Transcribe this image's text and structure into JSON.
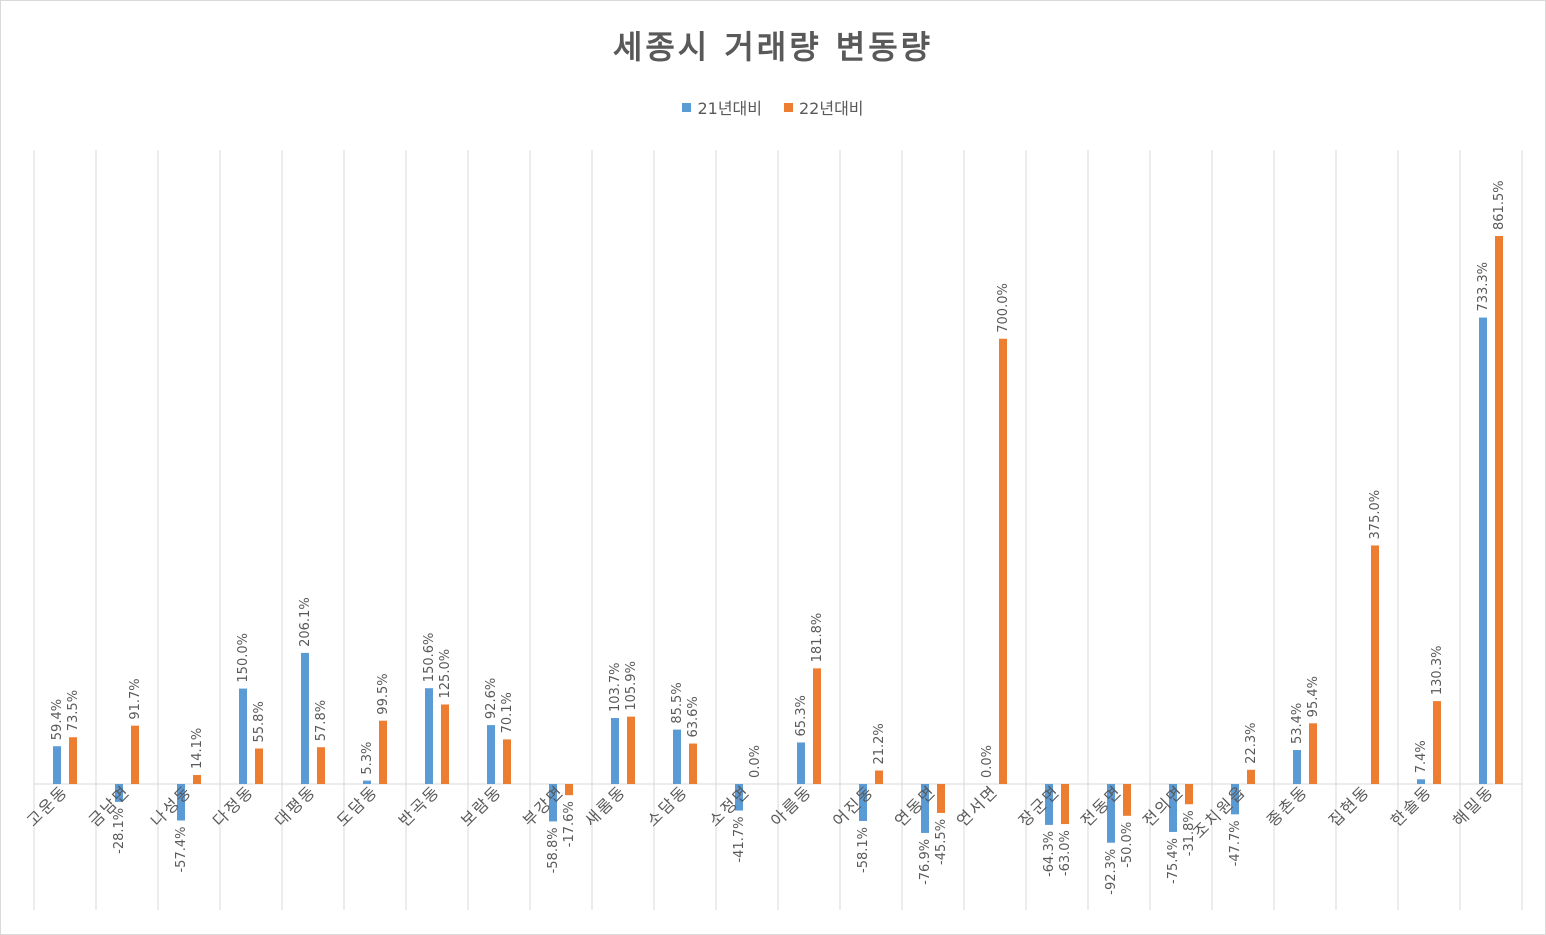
{
  "chart_data": {
    "type": "bar",
    "title": "세종시 거래량 변동량",
    "categories": [
      "고운동",
      "금남면",
      "나성동",
      "다정동",
      "대평동",
      "도담동",
      "반곡동",
      "보람동",
      "부강면",
      "새롬동",
      "소담동",
      "소정면",
      "아름동",
      "어진동",
      "연동면",
      "연서면",
      "장군면",
      "전동면",
      "전의면",
      "조치원읍",
      "종촌동",
      "집현동",
      "한솔동",
      "해밀동"
    ],
    "series": [
      {
        "name": "21년대비",
        "color": "#5b9bd5",
        "values": [
          59.4,
          -28.1,
          -57.4,
          150.0,
          206.1,
          5.3,
          150.6,
          92.6,
          -58.8,
          103.7,
          85.5,
          -41.7,
          65.3,
          -58.1,
          -76.9,
          0.0,
          -64.3,
          -92.3,
          -75.4,
          -47.7,
          53.4,
          null,
          7.4,
          733.3
        ],
        "labels": [
          "59.4%",
          "-28.1%",
          "-57.4%",
          "150.0%",
          "206.1%",
          "5.3%",
          "150.6%",
          "92.6%",
          "-58.8%",
          "103.7%",
          "85.5%",
          "-41.7%",
          "65.3%",
          "-58.1%",
          "-76.9%",
          "0.0%",
          "-64.3%",
          "-92.3%",
          "-75.4%",
          "-47.7%",
          "53.4%",
          "",
          "7.4%",
          "733.3%"
        ]
      },
      {
        "name": "22년대비",
        "color": "#ed7d31",
        "values": [
          73.5,
          91.7,
          14.1,
          55.8,
          57.8,
          99.5,
          125.0,
          70.1,
          -17.6,
          105.9,
          63.6,
          0.0,
          181.8,
          21.2,
          -45.5,
          700.0,
          -63.0,
          -50.0,
          -31.8,
          22.3,
          95.4,
          375.0,
          130.3,
          861.5
        ],
        "labels": [
          "73.5%",
          "91.7%",
          "14.1%",
          "55.8%",
          "57.8%",
          "99.5%",
          "125.0%",
          "70.1%",
          "-17.6%",
          "105.9%",
          "63.6%",
          "0.0%",
          "181.8%",
          "21.2%",
          "-45.5%",
          "700.0%",
          "-63.0%",
          "-50.0%",
          "-31.8%",
          "22.3%",
          "95.4%",
          "375.0%",
          "130.3%",
          "861.5%"
        ]
      }
    ],
    "ylim": [
      -100,
      1000
    ],
    "grid": "vertical category gridlines",
    "legend": "top-center"
  }
}
